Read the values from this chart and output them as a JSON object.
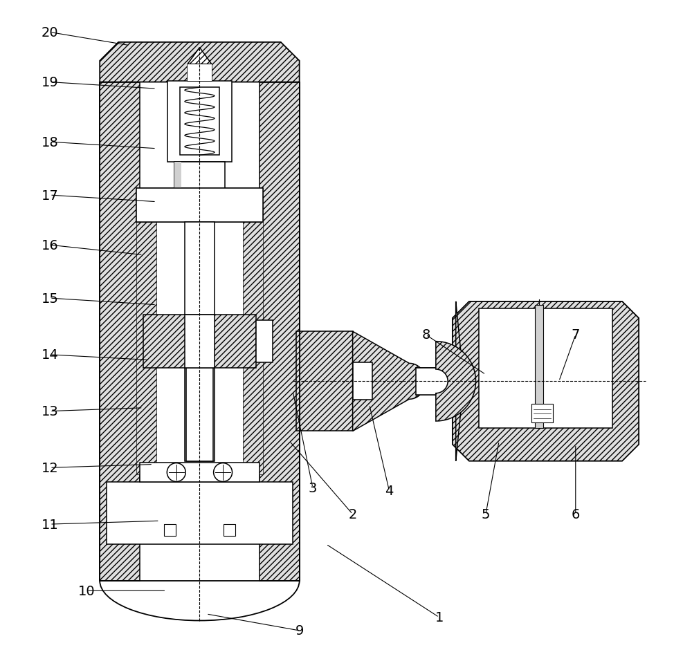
{
  "bg_color": "#ffffff",
  "line_color": "#000000",
  "labels_info": {
    "20": {
      "lpos": [
        0.055,
        0.955
      ],
      "tpos": [
        0.175,
        0.935
      ]
    },
    "19": {
      "lpos": [
        0.055,
        0.88
      ],
      "tpos": [
        0.215,
        0.87
      ]
    },
    "18": {
      "lpos": [
        0.055,
        0.79
      ],
      "tpos": [
        0.215,
        0.78
      ]
    },
    "17": {
      "lpos": [
        0.055,
        0.71
      ],
      "tpos": [
        0.215,
        0.7
      ]
    },
    "16": {
      "lpos": [
        0.055,
        0.635
      ],
      "tpos": [
        0.195,
        0.62
      ]
    },
    "15": {
      "lpos": [
        0.055,
        0.555
      ],
      "tpos": [
        0.215,
        0.545
      ]
    },
    "14": {
      "lpos": [
        0.055,
        0.47
      ],
      "tpos": [
        0.205,
        0.462
      ]
    },
    "13": {
      "lpos": [
        0.055,
        0.385
      ],
      "tpos": [
        0.195,
        0.39
      ]
    },
    "12": {
      "lpos": [
        0.055,
        0.3
      ],
      "tpos": [
        0.21,
        0.305
      ]
    },
    "11": {
      "lpos": [
        0.055,
        0.215
      ],
      "tpos": [
        0.22,
        0.22
      ]
    },
    "10": {
      "lpos": [
        0.11,
        0.115
      ],
      "tpos": [
        0.23,
        0.115
      ]
    },
    "9": {
      "lpos": [
        0.43,
        0.055
      ],
      "tpos": [
        0.29,
        0.08
      ]
    },
    "1": {
      "lpos": [
        0.64,
        0.075
      ],
      "tpos": [
        0.47,
        0.185
      ]
    },
    "2": {
      "lpos": [
        0.51,
        0.23
      ],
      "tpos": [
        0.415,
        0.34
      ]
    },
    "3": {
      "lpos": [
        0.45,
        0.27
      ],
      "tpos": [
        0.42,
        0.415
      ]
    },
    "4": {
      "lpos": [
        0.565,
        0.265
      ],
      "tpos": [
        0.535,
        0.395
      ]
    },
    "5": {
      "lpos": [
        0.71,
        0.23
      ],
      "tpos": [
        0.73,
        0.34
      ]
    },
    "6": {
      "lpos": [
        0.845,
        0.23
      ],
      "tpos": [
        0.845,
        0.335
      ]
    },
    "7": {
      "lpos": [
        0.845,
        0.5
      ],
      "tpos": [
        0.82,
        0.43
      ]
    },
    "8": {
      "lpos": [
        0.62,
        0.5
      ],
      "tpos": [
        0.71,
        0.44
      ]
    }
  }
}
